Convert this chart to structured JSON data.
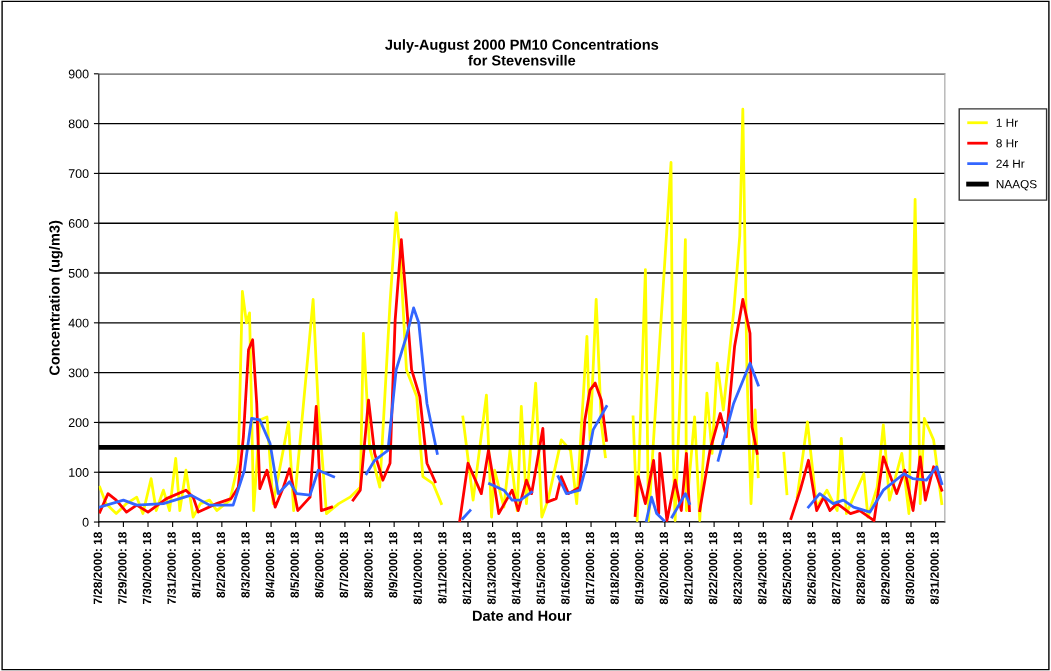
{
  "chart_data": {
    "type": "line",
    "title": "July-August 2000 PM10 Concentrations\nfor Stevensville",
    "xlabel": "Date and Hour",
    "ylabel": "Concentration (ug/m3)",
    "xlim": [
      "2000-07-28T18:00",
      "2000-09-01T03:00"
    ],
    "ylim": [
      0,
      900
    ],
    "yticks": [
      0,
      100,
      200,
      300,
      400,
      500,
      600,
      700,
      800,
      900
    ],
    "xticks": [
      {
        "value": "2000-07-28T18:00",
        "label": "7/28/2000: 18"
      },
      {
        "value": "2000-07-29T18:00",
        "label": "7/29/2000: 18"
      },
      {
        "value": "2000-07-30T18:00",
        "label": "7/30/2000: 18"
      },
      {
        "value": "2000-07-31T18:00",
        "label": "7/31/2000: 18"
      },
      {
        "value": "2000-08-01T18:00",
        "label": "8/1/2000: 18"
      },
      {
        "value": "2000-08-02T18:00",
        "label": "8/2/2000: 18"
      },
      {
        "value": "2000-08-03T18:00",
        "label": "8/3/2000: 18"
      },
      {
        "value": "2000-08-04T18:00",
        "label": "8/4/2000: 18"
      },
      {
        "value": "2000-08-05T18:00",
        "label": "8/5/2000: 18"
      },
      {
        "value": "2000-08-06T18:00",
        "label": "8/6/2000: 18"
      },
      {
        "value": "2000-08-07T18:00",
        "label": "8/7/2000: 18"
      },
      {
        "value": "2000-08-08T18:00",
        "label": "8/8/2000: 18"
      },
      {
        "value": "2000-08-09T18:00",
        "label": "8/9/2000: 18"
      },
      {
        "value": "2000-08-10T18:00",
        "label": "8/10/2000: 18"
      },
      {
        "value": "2000-08-11T18:00",
        "label": "8/11/2000: 18"
      },
      {
        "value": "2000-08-12T18:00",
        "label": "8/12/2000: 18"
      },
      {
        "value": "2000-08-13T18:00",
        "label": "8/13/2000: 18"
      },
      {
        "value": "2000-08-14T18:00",
        "label": "8/14/2000: 18"
      },
      {
        "value": "2000-08-15T18:00",
        "label": "8/15/2000: 18"
      },
      {
        "value": "2000-08-16T18:00",
        "label": "8/16/2000: 18"
      },
      {
        "value": "2000-08-17T18:00",
        "label": "8/17/2000: 18"
      },
      {
        "value": "2000-08-18T18:00",
        "label": "8/18/2000: 18"
      },
      {
        "value": "2000-08-19T18:00",
        "label": "8/19/2000: 18"
      },
      {
        "value": "2000-08-20T18:00",
        "label": "8/20/2000: 18"
      },
      {
        "value": "2000-08-21T18:00",
        "label": "8/21/2000: 18"
      },
      {
        "value": "2000-08-22T18:00",
        "label": "8/22/2000: 18"
      },
      {
        "value": "2000-08-23T18:00",
        "label": "8/23/2000: 18"
      },
      {
        "value": "2000-08-24T18:00",
        "label": "8/24/2000: 18"
      },
      {
        "value": "2000-08-25T18:00",
        "label": "8/25/2000: 18"
      },
      {
        "value": "2000-08-26T18:00",
        "label": "8/26/2000: 18"
      },
      {
        "value": "2000-08-27T18:00",
        "label": "8/27/2000: 18"
      },
      {
        "value": "2000-08-28T18:00",
        "label": "8/28/2000: 18"
      },
      {
        "value": "2000-08-29T18:00",
        "label": "8/29/2000: 18"
      },
      {
        "value": "2000-08-30T18:00",
        "label": "8/30/2000: 18"
      },
      {
        "value": "2000-08-31T18:00",
        "label": "8/31/2000: 18"
      }
    ],
    "grid": "y",
    "legend": "right",
    "marker": "none",
    "line_style": "solid",
    "series": [
      {
        "name": "1 Hr",
        "color": "#ffff00",
        "x": [
          "2000-07-28T19:00",
          "2000-07-29T01:00",
          "2000-07-29T11:00",
          "2000-07-29T21:00",
          "2000-07-30T07:00",
          "2000-07-30T13:00",
          "2000-07-30T21:00",
          "2000-07-31T02:00",
          "2000-07-31T09:00",
          "2000-07-31T15:00",
          "2000-07-31T21:00",
          "2000-08-01T01:00",
          "2000-08-01T07:00",
          "2000-08-01T14:00",
          "2000-08-01T21:00",
          "2000-08-02T06:00",
          "2000-08-02T13:00",
          "2000-08-03T02:00",
          "2000-08-03T10:00",
          "2000-08-03T14:00",
          "2000-08-03T18:00",
          "2000-08-03T21:00",
          "2000-08-04T01:00",
          "2000-08-04T07:00",
          "2000-08-04T14:00",
          "2000-08-04T20:00",
          "2000-08-05T11:00",
          "2000-08-05T16:00",
          "2000-08-06T11:00",
          "2000-08-06T16:00",
          "2000-08-07T00:00",
          "2000-08-07T12:00",
          "2000-08-07T23:00",
          "2000-08-08T09:00",
          "2000-08-08T12:00",
          "2000-08-08T18:00",
          "2000-08-09T04:00",
          "2000-08-09T14:00",
          "2000-08-09T20:00",
          "2000-08-10T00:00",
          "2000-08-10T06:00",
          "2000-08-10T16:00",
          "2000-08-10T22:00",
          "2000-08-11T08:00",
          "2000-08-11T16:00",
          "2000-08-12T02:00",
          "2000-08-12T13:00",
          "2000-08-12T23:00",
          "2000-08-13T12:00",
          "2000-08-13T17:00",
          "2000-08-13T20:00",
          "2000-08-14T05:00",
          "2000-08-14T11:00",
          "2000-08-14T18:00",
          "2000-08-14T22:00",
          "2000-08-15T03:00",
          "2000-08-15T12:00",
          "2000-08-15T18:00",
          "2000-08-16T00:00",
          "2000-08-16T13:00",
          "2000-08-16T22:00",
          "2000-08-17T04:00",
          "2000-08-17T14:00",
          "2000-08-17T17:00",
          "2000-08-17T23:00",
          "2000-08-18T04:00",
          "2000-08-18T08:00",
          "2000-08-18T22:00",
          "2000-08-19T11:00",
          "2000-08-19T15:00",
          "2000-08-19T23:00",
          "2000-08-20T02:00",
          "2000-08-21T00:00",
          "2000-08-21T02:00",
          "2000-08-21T04:00",
          "2000-08-21T12:00",
          "2000-08-21T14:00",
          "2000-08-21T15:00",
          "2000-08-21T23:00",
          "2000-08-22T04:00",
          "2000-08-22T11:00",
          "2000-08-22T16:00",
          "2000-08-22T21:00",
          "2000-08-23T03:00",
          "2000-08-23T13:00",
          "2000-08-23T19:00",
          "2000-08-23T22:00",
          "2000-08-24T02:00",
          "2000-08-24T06:00",
          "2000-08-24T10:00",
          "2000-08-24T13:00",
          "2000-08-25T02:00",
          "2000-08-25T14:00",
          "2000-08-25T17:00",
          "2000-08-25T22:00",
          "2000-08-26T03:00",
          "2000-08-26T13:00",
          "2000-08-26T22:00",
          "2000-08-27T08:00",
          "2000-08-27T18:00",
          "2000-08-27T22:00",
          "2000-08-28T03:00",
          "2000-08-28T20:00",
          "2000-08-29T00:00",
          "2000-08-29T09:00",
          "2000-08-29T15:00",
          "2000-08-29T21:00",
          "2000-08-30T09:00",
          "2000-08-30T16:00",
          "2000-08-30T22:00",
          "2000-08-31T03:00",
          "2000-08-31T07:00",
          "2000-08-31T16:00",
          "2000-09-01T00:00"
        ],
        "values": [
          70,
          37,
          17,
          37,
          50,
          17,
          87,
          23,
          64,
          23,
          128,
          23,
          104,
          10,
          37,
          44,
          23,
          44,
          118,
          463,
          400,
          420,
          23,
          205,
          211,
          37,
          201,
          23,
          447,
          232,
          17,
          37,
          50,
          70,
          379,
          151,
          70,
          440,
          621,
          534,
          306,
          252,
          91,
          77,
          37,
          null,
          211,
          44,
          255,
          10,
          104,
          30,
          144,
          23,
          232,
          37,
          279,
          10,
          44,
          165,
          144,
          37,
          373,
          165,
          447,
          198,
          131,
          null,
          211,
          3,
          507,
          3,
          722,
          151,
          3,
          420,
          567,
          23,
          211,
          3,
          259,
          138,
          319,
          225,
          420,
          574,
          829,
          306,
          37,
          225,
          91,
          null,
          138,
          57,
          null,
          50,
          201,
          30,
          64,
          23,
          168,
          17,
          97,
          10,
          70,
          195,
          44,
          138,
          17,
          648,
          37,
          208,
          165,
          37
        ]
      },
      {
        "name": "8 Hr",
        "color": "#ff0000",
        "x": [
          "2000-07-28T19:00",
          "2000-07-29T03:00",
          "2000-07-29T11:00",
          "2000-07-29T21:00",
          "2000-07-30T07:00",
          "2000-07-30T18:00",
          "2000-07-31T12:00",
          "2000-08-01T07:00",
          "2000-08-01T14:00",
          "2000-08-01T19:00",
          "2000-08-02T13:00",
          "2000-08-03T03:00",
          "2000-08-03T10:00",
          "2000-08-03T15:00",
          "2000-08-03T20:00",
          "2000-08-04T00:00",
          "2000-08-04T04:00",
          "2000-08-04T07:00",
          "2000-08-04T14:00",
          "2000-08-04T22:00",
          "2000-08-05T06:00",
          "2000-08-05T12:00",
          "2000-08-05T20:00",
          "2000-08-06T08:00",
          "2000-08-06T14:00",
          "2000-08-06T19:00",
          "2000-08-07T05:00",
          "2000-08-07T16:00",
          "2000-08-08T02:00",
          "2000-08-08T09:00",
          "2000-08-08T17:00",
          "2000-08-08T23:00",
          "2000-08-09T07:00",
          "2000-08-09T14:00",
          "2000-08-09T19:00",
          "2000-08-10T01:00",
          "2000-08-10T06:00",
          "2000-08-10T11:00",
          "2000-08-10T19:00",
          "2000-08-11T02:00",
          "2000-08-11T10:00",
          "2000-08-12T00:00",
          "2000-08-12T10:00",
          "2000-08-12T18:00",
          "2000-08-13T07:00",
          "2000-08-13T14:00",
          "2000-08-13T20:00",
          "2000-08-14T00:00",
          "2000-08-14T13:00",
          "2000-08-14T19:00",
          "2000-08-15T03:00",
          "2000-08-15T08:00",
          "2000-08-15T19:00",
          "2000-08-15T23:00",
          "2000-08-16T08:00",
          "2000-08-16T13:00",
          "2000-08-16T20:00",
          "2000-08-17T07:00",
          "2000-08-17T12:00",
          "2000-08-17T17:00",
          "2000-08-17T22:00",
          "2000-08-18T04:00",
          "2000-08-18T09:00",
          "2000-08-19T00:00",
          "2000-08-19T13:00",
          "2000-08-19T16:00",
          "2000-08-19T23:00",
          "2000-08-20T07:00",
          "2000-08-20T12:00",
          "2000-08-20T13:00",
          "2000-08-20T20:00",
          "2000-08-21T04:00",
          "2000-08-21T10:00",
          "2000-08-21T15:00",
          "2000-08-21T18:00",
          "2000-08-22T00:00",
          "2000-08-22T04:00",
          "2000-08-22T14:00",
          "2000-08-23T00:00",
          "2000-08-23T06:00",
          "2000-08-23T14:00",
          "2000-08-23T22:00",
          "2000-08-24T05:00",
          "2000-08-24T07:00",
          "2000-08-24T12:00",
          "2000-08-25T05:00",
          "2000-08-25T21:00",
          "2000-08-26T06:00",
          "2000-08-26T14:00",
          "2000-08-26T22:00",
          "2000-08-27T05:00",
          "2000-08-27T11:00",
          "2000-08-27T18:00",
          "2000-08-28T07:00",
          "2000-08-28T16:00",
          "2000-08-29T06:00",
          "2000-08-29T15:00",
          "2000-08-30T04:00",
          "2000-08-30T12:00",
          "2000-08-30T20:00",
          "2000-08-31T03:00",
          "2000-08-31T08:00",
          "2000-08-31T16:00",
          "2000-09-01T00:00"
        ],
        "values": [
          20,
          57,
          44,
          20,
          34,
          20,
          47,
          64,
          50,
          20,
          37,
          47,
          70,
          171,
          346,
          366,
          238,
          67,
          104,
          30,
          70,
          107,
          23,
          50,
          232,
          23,
          30,
          null,
          44,
          64,
          245,
          138,
          84,
          118,
          406,
          567,
          440,
          306,
          252,
          118,
          81,
          null,
          3,
          118,
          57,
          144,
          70,
          17,
          64,
          23,
          84,
          57,
          188,
          40,
          47,
          91,
          57,
          70,
          205,
          265,
          279,
          245,
          164,
          null,
          13,
          91,
          37,
          124,
          17,
          138,
          3,
          84,
          23,
          138,
          23,
          null,
          23,
          144,
          218,
          171,
          353,
          447,
          379,
          191,
          138,
          null,
          7,
          64,
          124,
          23,
          50,
          23,
          37,
          17,
          23,
          3,
          131,
          57,
          104,
          23,
          131,
          44,
          111,
          64
        ]
      },
      {
        "name": "24 Hr",
        "color": "#3366ff",
        "x": [
          "2000-07-28T19:00",
          "2000-07-29T18:00",
          "2000-07-30T07:00",
          "2000-07-31T09:00",
          "2000-08-01T12:00",
          "2000-08-02T06:00",
          "2000-08-03T05:00",
          "2000-08-03T16:00",
          "2000-08-03T23:00",
          "2000-08-04T07:00",
          "2000-08-04T17:00",
          "2000-08-05T01:00",
          "2000-08-05T12:00",
          "2000-08-05T19:00",
          "2000-08-06T08:00",
          "2000-08-06T16:00",
          "2000-08-07T07:00",
          "2000-08-08T00:00",
          "2000-08-08T15:00",
          "2000-08-08T23:00",
          "2000-08-09T12:00",
          "2000-08-09T20:00",
          "2000-08-10T06:00",
          "2000-08-10T13:00",
          "2000-08-10T18:00",
          "2000-08-11T02:00",
          "2000-08-11T12:00",
          "2000-08-12T00:00",
          "2000-08-12T13:00",
          "2000-08-12T20:00",
          "2000-08-13T04:00",
          "2000-08-13T15:00",
          "2000-08-14T05:00",
          "2000-08-14T13:00",
          "2000-08-14T21:00",
          "2000-08-15T08:00",
          "2000-08-16T00:00",
          "2000-08-16T10:00",
          "2000-08-16T18:00",
          "2000-08-17T07:00",
          "2000-08-17T14:00",
          "2000-08-17T20:00",
          "2000-08-18T09:00",
          "2000-08-19T12:00",
          "2000-08-20T00:00",
          "2000-08-20T05:00",
          "2000-08-20T10:00",
          "2000-08-20T17:00",
          "2000-08-20T21:00",
          "2000-08-21T01:00",
          "2000-08-21T14:00",
          "2000-08-21T18:00",
          "2000-08-22T08:00",
          "2000-08-22T22:00",
          "2000-08-23T13:00",
          "2000-08-24T05:00",
          "2000-08-24T13:00",
          "2000-08-25T12:00",
          "2000-08-26T14:00",
          "2000-08-27T01:00",
          "2000-08-27T14:00",
          "2000-08-28T00:00",
          "2000-08-28T10:00",
          "2000-08-29T02:00",
          "2000-08-29T15:00",
          "2000-08-30T11:00",
          "2000-08-30T20:00",
          "2000-08-31T09:00",
          "2000-08-31T19:00",
          "2000-09-01T00:00"
        ],
        "values": [
          30,
          44,
          34,
          37,
          54,
          34,
          34,
          104,
          208,
          205,
          158,
          57,
          81,
          57,
          54,
          104,
          91,
          null,
          97,
          124,
          144,
          306,
          373,
          430,
          400,
          238,
          138,
          null,
          7,
          23,
          null,
          77,
          64,
          44,
          44,
          60,
          null,
          91,
          57,
          64,
          118,
          185,
          232,
          null,
          3,
          50,
          17,
          3,
          null,
          10,
          57,
          37,
          null,
          124,
          238,
          319,
          275,
          null,
          30,
          57,
          37,
          44,
          30,
          20,
          64,
          97,
          87,
          84,
          111,
          77
        ]
      }
    ],
    "ref_lines": [
      {
        "axis": "y",
        "value": 150,
        "label": "NAAQS",
        "color": "#000000",
        "line_style": "solid"
      }
    ]
  }
}
